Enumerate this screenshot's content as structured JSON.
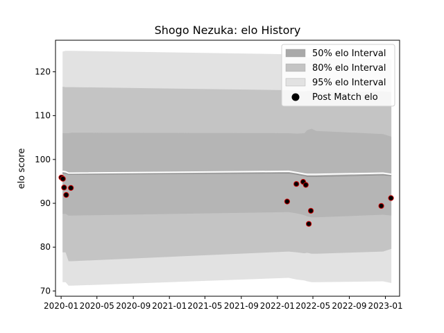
{
  "chart_data": {
    "type": "area",
    "title": "Shogo Nezuka: elo History",
    "xlabel": "",
    "ylabel": "elo score",
    "xlim": [
      "2019-12-13",
      "2023-02-18"
    ],
    "ylim": [
      68.8,
      127.2
    ],
    "x_ticks": [
      "2020-01",
      "2020-05",
      "2020-09",
      "2021-01",
      "2021-05",
      "2021-09",
      "2022-01",
      "2022-05",
      "2022-09",
      "2023-01"
    ],
    "y_ticks": [
      70,
      80,
      90,
      100,
      110,
      120
    ],
    "legend": {
      "position": "top-right",
      "entries": [
        "50% elo Interval",
        "80% elo Interval",
        "95% elo Interval",
        "Post Match elo"
      ]
    },
    "colors": {
      "band50": "#a9a9a9",
      "band80": "#c4c4c4",
      "band95": "#e2e2e2",
      "mean_line": "#ffffff",
      "center_line": "#8a8a8a",
      "marker_fill": "#000000",
      "marker_edge": "#cc0000"
    },
    "x": [
      "2020-01-06",
      "2020-01-16",
      "2020-01-26",
      "2020-02-06",
      "2022-02-08",
      "2022-03-08",
      "2022-04-02",
      "2022-04-12",
      "2022-04-27",
      "2022-05-12",
      "2022-12-24",
      "2023-01-21"
    ],
    "series": [
      {
        "name": "95% elo Interval",
        "upper": [
          124.6,
          124.8,
          124.8,
          124.8,
          124.0,
          123.7,
          123.4,
          123.3,
          123.3,
          123.2,
          122.9,
          122.8
        ],
        "lower": [
          72.0,
          72.0,
          71.2,
          71.2,
          73.0,
          72.6,
          72.4,
          72.2,
          72.0,
          72.0,
          72.2,
          71.8
        ]
      },
      {
        "name": "80% elo Interval",
        "upper": [
          116.6,
          116.5,
          116.5,
          116.5,
          115.8,
          115.6,
          115.5,
          115.7,
          115.6,
          115.4,
          115.5,
          115.4
        ],
        "lower": [
          78.8,
          78.8,
          76.8,
          76.8,
          79.0,
          78.8,
          78.6,
          78.7,
          78.5,
          78.5,
          79.0,
          79.6
        ]
      },
      {
        "name": "50% elo Interval",
        "upper": [
          106.0,
          106.0,
          106.0,
          106.1,
          106.0,
          105.9,
          106.0,
          106.7,
          107.0,
          106.5,
          105.8,
          105.2
        ],
        "lower": [
          87.6,
          87.6,
          87.2,
          87.2,
          88.0,
          87.7,
          87.3,
          87.0,
          86.8,
          86.8,
          87.4,
          87.2
        ]
      },
      {
        "name": "mean",
        "values": [
          97.3,
          97.2,
          96.9,
          96.9,
          97.3,
          97.0,
          96.7,
          96.6,
          96.6,
          96.6,
          96.9,
          96.6
        ]
      },
      {
        "name": "center",
        "values": [
          96.9,
          96.8,
          96.6,
          96.6,
          96.9,
          96.6,
          96.3,
          96.1,
          96.1,
          96.1,
          96.5,
          96.3
        ]
      },
      {
        "name": "Post Match elo",
        "points": [
          {
            "x": "2020-01-02",
            "y": 95.9
          },
          {
            "x": "2020-01-07",
            "y": 95.6
          },
          {
            "x": "2020-01-11",
            "y": 93.6
          },
          {
            "x": "2020-01-18",
            "y": 91.9
          },
          {
            "x": "2020-02-03",
            "y": 93.5
          },
          {
            "x": "2022-02-03",
            "y": 90.4
          },
          {
            "x": "2022-03-06",
            "y": 94.4
          },
          {
            "x": "2022-03-29",
            "y": 94.9
          },
          {
            "x": "2022-04-07",
            "y": 94.2
          },
          {
            "x": "2022-04-17",
            "y": 85.3
          },
          {
            "x": "2022-04-24",
            "y": 88.3
          },
          {
            "x": "2022-12-18",
            "y": 89.4
          },
          {
            "x": "2023-01-20",
            "y": 91.2
          }
        ]
      }
    ]
  }
}
